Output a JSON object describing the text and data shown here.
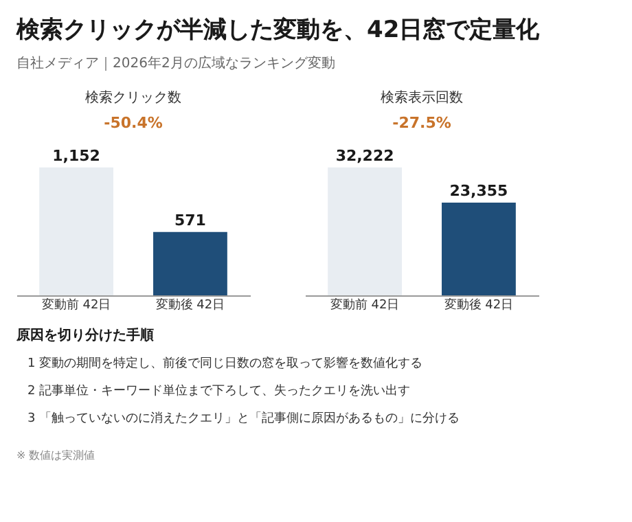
{
  "chart_data": [
    {
      "type": "other",
      "title": "検索クリックが半減した変動を、42日窓で定量化",
      "subtitle": "自社メディア｜2026年2月の広域なランキング変動",
      "annotations": [
        "原因を切り分けた手順",
        "1  変動の期間を特定し、前後で同じ日数の窓を取って影響を数値化する",
        "2  記事単位・キーワード単位まで下ろして、失ったクエリを洗い出す",
        "3  「触っていないのに消えたクエリ」と「記事側に原因があるもの」に分ける",
        "※ 数値は実測値"
      ]
    },
    {
      "type": "bar",
      "title": "検索クリック数",
      "categories": [
        "変動前 42日",
        "変動後 42日"
      ],
      "values": [
        1152,
        571
      ],
      "colors": [
        "#e8edf2",
        "#1f4e79"
      ],
      "value_labels": [
        "1,152",
        "571"
      ],
      "annotations": [
        "-50.4%"
      ]
    },
    {
      "type": "bar",
      "title": "検索表示回数",
      "categories": [
        "変動前 42日",
        "変動後 42日"
      ],
      "values": [
        32222,
        23355
      ],
      "colors": [
        "#e8edf2",
        "#1f4e79"
      ],
      "value_labels": [
        "32,222",
        "23,355"
      ],
      "annotations": [
        "-27.5%"
      ]
    }
  ]
}
